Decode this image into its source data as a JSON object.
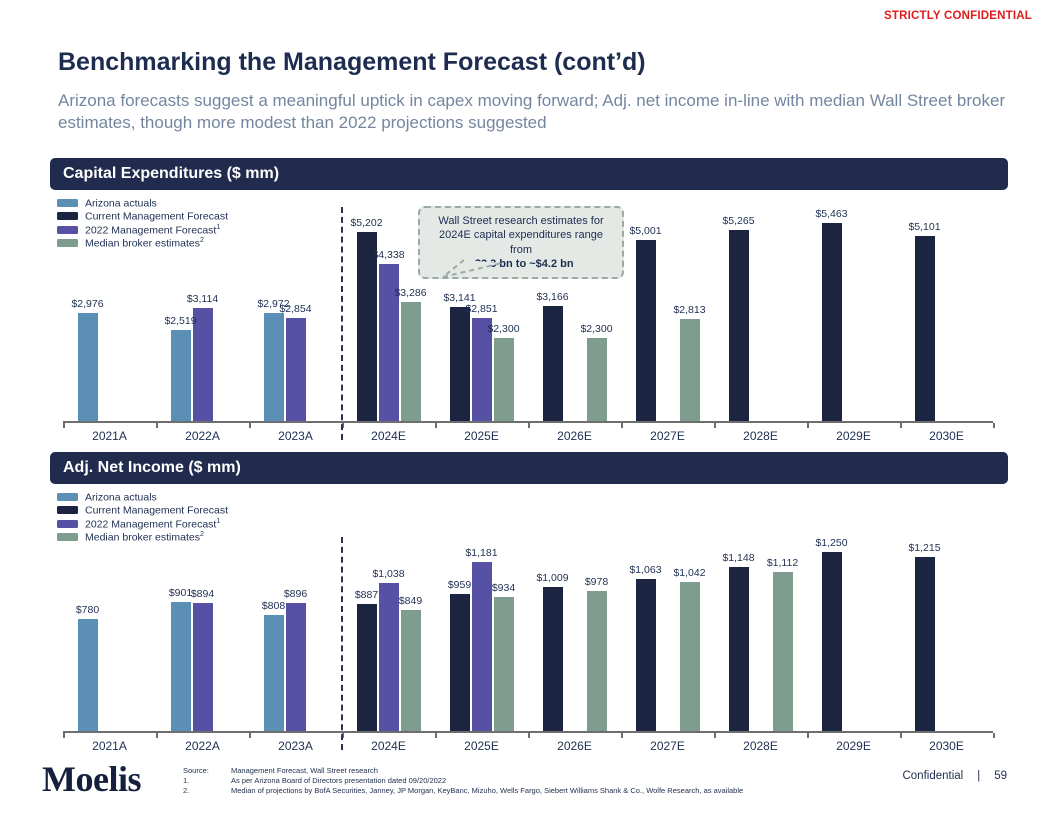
{
  "meta": {
    "stamp": "STRICTLY CONFIDENTIAL",
    "title": "Benchmarking the Management Forecast (cont’d)",
    "subtitle": "Arizona forecasts suggest a meaningful uptick in capex moving forward; Adj. net income in-line with median Wall Street broker estimates, though more modest than 2022 projections suggested"
  },
  "colors": {
    "arizona_actuals": "#5b8fb5",
    "current_management_forecast": "#1b2441",
    "management_forecast_2022": "#5751a5",
    "median_broker_estimates": "#7e9d8f",
    "banner_background": "#202b4d",
    "stamp_red": "#e01b1b",
    "text_navy": "#1e2f52",
    "subtitle_gray": "#74869f",
    "callout_background": "#e4e9e6"
  },
  "legend": [
    {
      "label": "Arizona actuals",
      "sup": ""
    },
    {
      "label": "Current Management Forecast",
      "sup": ""
    },
    {
      "label": "2022 Management Forecast",
      "sup": "1"
    },
    {
      "label": "Median broker estimates",
      "sup": "2"
    }
  ],
  "chart_data": [
    {
      "id": "capex",
      "type": "bar",
      "title": "Capital Expenditures ($ mm)",
      "value_prefix": "$",
      "categories": [
        "2021A",
        "2022A",
        "2023A",
        "2024E",
        "2025E",
        "2026E",
        "2027E",
        "2028E",
        "2029E",
        "2030E"
      ],
      "series": [
        {
          "name": "Arizona actuals",
          "slot": 0,
          "color": "#5b8fb5",
          "values": [
            2976,
            2519,
            2972,
            null,
            null,
            null,
            null,
            null,
            null,
            null
          ]
        },
        {
          "name": "Current Management Forecast",
          "slot": 0,
          "color": "#1b2441",
          "values": [
            null,
            null,
            null,
            5202,
            3141,
            3166,
            5001,
            5265,
            5463,
            5101
          ]
        },
        {
          "name": "2022 Management Forecast",
          "slot": 1,
          "color": "#5751a5",
          "values": [
            null,
            3114,
            2854,
            4338,
            2851,
            null,
            null,
            null,
            null,
            null
          ]
        },
        {
          "name": "Median broker estimates",
          "slot": 2,
          "color": "#7e9d8f",
          "values": [
            null,
            null,
            null,
            3286,
            2300,
            2300,
            2813,
            null,
            null,
            null
          ]
        }
      ],
      "ylim": [
        0,
        5600
      ],
      "grid": false,
      "legend_position": "top-left",
      "separator_after": "2023A",
      "callout": {
        "text": "Wall Street research estimates for 2024E capital expenditures range from",
        "bold_text": "~$2.3 bn to ~$4.2 bn"
      }
    },
    {
      "id": "adj_net_income",
      "type": "bar",
      "title": "Adj. Net Income ($ mm)",
      "value_prefix": "$",
      "categories": [
        "2021A",
        "2022A",
        "2023A",
        "2024E",
        "2025E",
        "2026E",
        "2027E",
        "2028E",
        "2029E",
        "2030E"
      ],
      "series": [
        {
          "name": "Arizona actuals",
          "slot": 0,
          "color": "#5b8fb5",
          "values": [
            780,
            901,
            808,
            null,
            null,
            null,
            null,
            null,
            null,
            null
          ]
        },
        {
          "name": "Current Management Forecast",
          "slot": 0,
          "color": "#1b2441",
          "values": [
            null,
            null,
            null,
            887,
            959,
            1009,
            1063,
            1148,
            1250,
            1215
          ]
        },
        {
          "name": "2022 Management Forecast",
          "slot": 1,
          "color": "#5751a5",
          "values": [
            null,
            894,
            896,
            1038,
            1181,
            null,
            null,
            null,
            null,
            null
          ]
        },
        {
          "name": "Median broker estimates",
          "slot": 2,
          "color": "#7e9d8f",
          "values": [
            null,
            null,
            null,
            849,
            934,
            978,
            1042,
            1112,
            null,
            null
          ]
        }
      ],
      "ylim": [
        0,
        1280
      ],
      "grid": false,
      "legend_position": "top-left",
      "separator_after": "2023A"
    }
  ],
  "footer": {
    "logo": "Moelis",
    "source_rows": [
      {
        "label": "Source:",
        "text": "Management Forecast, Wall Street research"
      },
      {
        "label": "1.",
        "text": "As per Arizona Board of Directors presentation dated 09/20/2022"
      },
      {
        "label": "2.",
        "text": "Median of projections by BofA Securities, Janney, JP Morgan, KeyBanc, Mizuho, Wells Fargo, Siebert Williams Shank & Co., Wolfe Research, as available"
      }
    ],
    "confidential_label": "Confidential",
    "divider": "|",
    "page_number": "59"
  }
}
